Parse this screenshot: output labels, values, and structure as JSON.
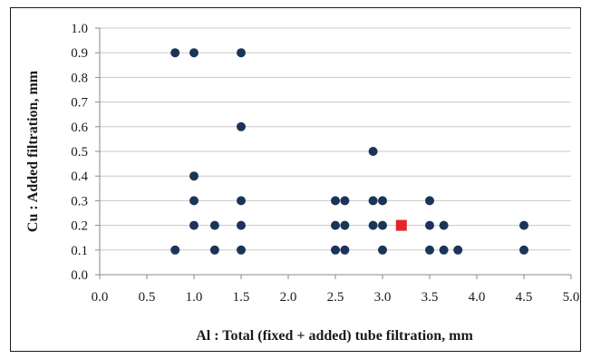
{
  "chart_data": {
    "type": "scatter",
    "title": "",
    "xlabel": "Al : Total (fixed + added) tube filtration, mm",
    "ylabel": "Cu : Added filtration, mm",
    "xlim": [
      0.0,
      5.0
    ],
    "ylim": [
      0.0,
      1.0
    ],
    "x_ticks": [
      "0.0",
      "0.5",
      "1.0",
      "1.5",
      "2.0",
      "2.5",
      "3.0",
      "3.5",
      "4.0",
      "4.5",
      "5.0"
    ],
    "y_ticks": [
      "0.0",
      "0.1",
      "0.2",
      "0.3",
      "0.4",
      "0.5",
      "0.6",
      "0.7",
      "0.8",
      "0.9",
      "1.0"
    ],
    "grid": "horizontal",
    "legend": "none",
    "series": [
      {
        "color": "#1b3558",
        "marker": "circle",
        "points": [
          [
            0.8,
            0.9
          ],
          [
            1.0,
            0.9
          ],
          [
            1.5,
            0.9
          ],
          [
            1.5,
            0.6
          ],
          [
            2.9,
            0.5
          ],
          [
            1.0,
            0.4
          ],
          [
            1.0,
            0.3
          ],
          [
            1.5,
            0.3
          ],
          [
            2.5,
            0.3
          ],
          [
            2.6,
            0.3
          ],
          [
            2.9,
            0.3
          ],
          [
            3.0,
            0.3
          ],
          [
            3.5,
            0.3
          ],
          [
            1.0,
            0.2
          ],
          [
            1.22,
            0.2
          ],
          [
            1.5,
            0.2
          ],
          [
            2.5,
            0.2
          ],
          [
            2.6,
            0.2
          ],
          [
            2.9,
            0.2
          ],
          [
            3.0,
            0.2
          ],
          [
            3.5,
            0.2
          ],
          [
            3.65,
            0.2
          ],
          [
            4.5,
            0.2
          ],
          [
            0.8,
            0.1
          ],
          [
            1.22,
            0.1
          ],
          [
            1.5,
            0.1
          ],
          [
            2.5,
            0.1
          ],
          [
            2.6,
            0.1
          ],
          [
            3.0,
            0.1
          ],
          [
            3.5,
            0.1
          ],
          [
            3.65,
            0.1
          ],
          [
            3.8,
            0.1
          ],
          [
            4.5,
            0.1
          ]
        ]
      },
      {
        "color": "#e3262b",
        "marker": "square",
        "points": [
          [
            3.2,
            0.2
          ]
        ]
      }
    ]
  }
}
